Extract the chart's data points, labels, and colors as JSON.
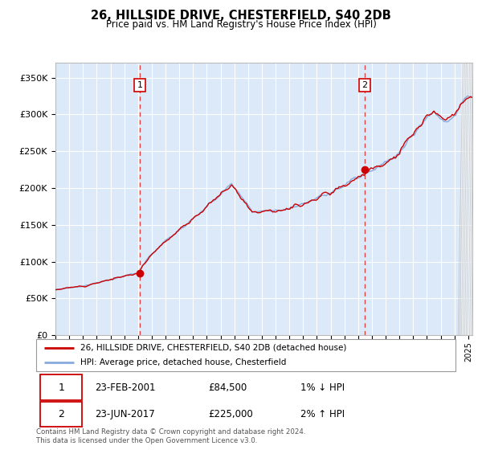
{
  "title": "26, HILLSIDE DRIVE, CHESTERFIELD, S40 2DB",
  "subtitle": "Price paid vs. HM Land Registry's House Price Index (HPI)",
  "ylabel_ticks": [
    "£0",
    "£50K",
    "£100K",
    "£150K",
    "£200K",
    "£250K",
    "£300K",
    "£350K"
  ],
  "ytick_vals": [
    0,
    50000,
    100000,
    150000,
    200000,
    250000,
    300000,
    350000
  ],
  "ylim": [
    0,
    370000
  ],
  "xlim_start": 1995.0,
  "xlim_end": 2025.3,
  "sale1_date": 2001.13,
  "sale1_price": 84500,
  "sale2_date": 2017.48,
  "sale2_price": 225000,
  "legend_line1": "26, HILLSIDE DRIVE, CHESTERFIELD, S40 2DB (detached house)",
  "legend_line2": "HPI: Average price, detached house, Chesterfield",
  "table_row1_num": "1",
  "table_row1_date": "23-FEB-2001",
  "table_row1_price": "£84,500",
  "table_row1_hpi": "1% ↓ HPI",
  "table_row2_num": "2",
  "table_row2_date": "23-JUN-2017",
  "table_row2_price": "£225,000",
  "table_row2_hpi": "2% ↑ HPI",
  "footer": "Contains HM Land Registry data © Crown copyright and database right 2024.\nThis data is licensed under the Open Government Licence v3.0.",
  "bg_color": "#ffffff",
  "line_color_red": "#cc0000",
  "line_color_blue": "#88aadd",
  "vline_color": "#dd4444",
  "dot_color": "#cc0000",
  "grid_color": "#ffffff",
  "plot_bg": "#dce9f8"
}
